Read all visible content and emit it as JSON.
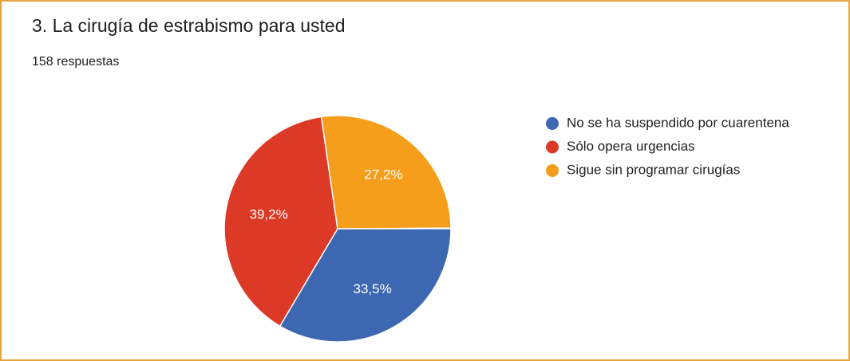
{
  "chart_data": {
    "type": "pie",
    "title": "3. La cirugía de estrabismo para usted",
    "subtitle": "158 respuestas",
    "categories": [
      "No se ha suspendido por cuarentena",
      "Sólo opera urgencias",
      "Sigue sin programar cirugías"
    ],
    "values": [
      33.5,
      39.2,
      27.2
    ],
    "value_labels": [
      "33,5%",
      "39,2%",
      "27,2%"
    ],
    "colors": [
      "#3d67b1",
      "#dc3a26",
      "#f59e1c"
    ],
    "legend": "right"
  }
}
